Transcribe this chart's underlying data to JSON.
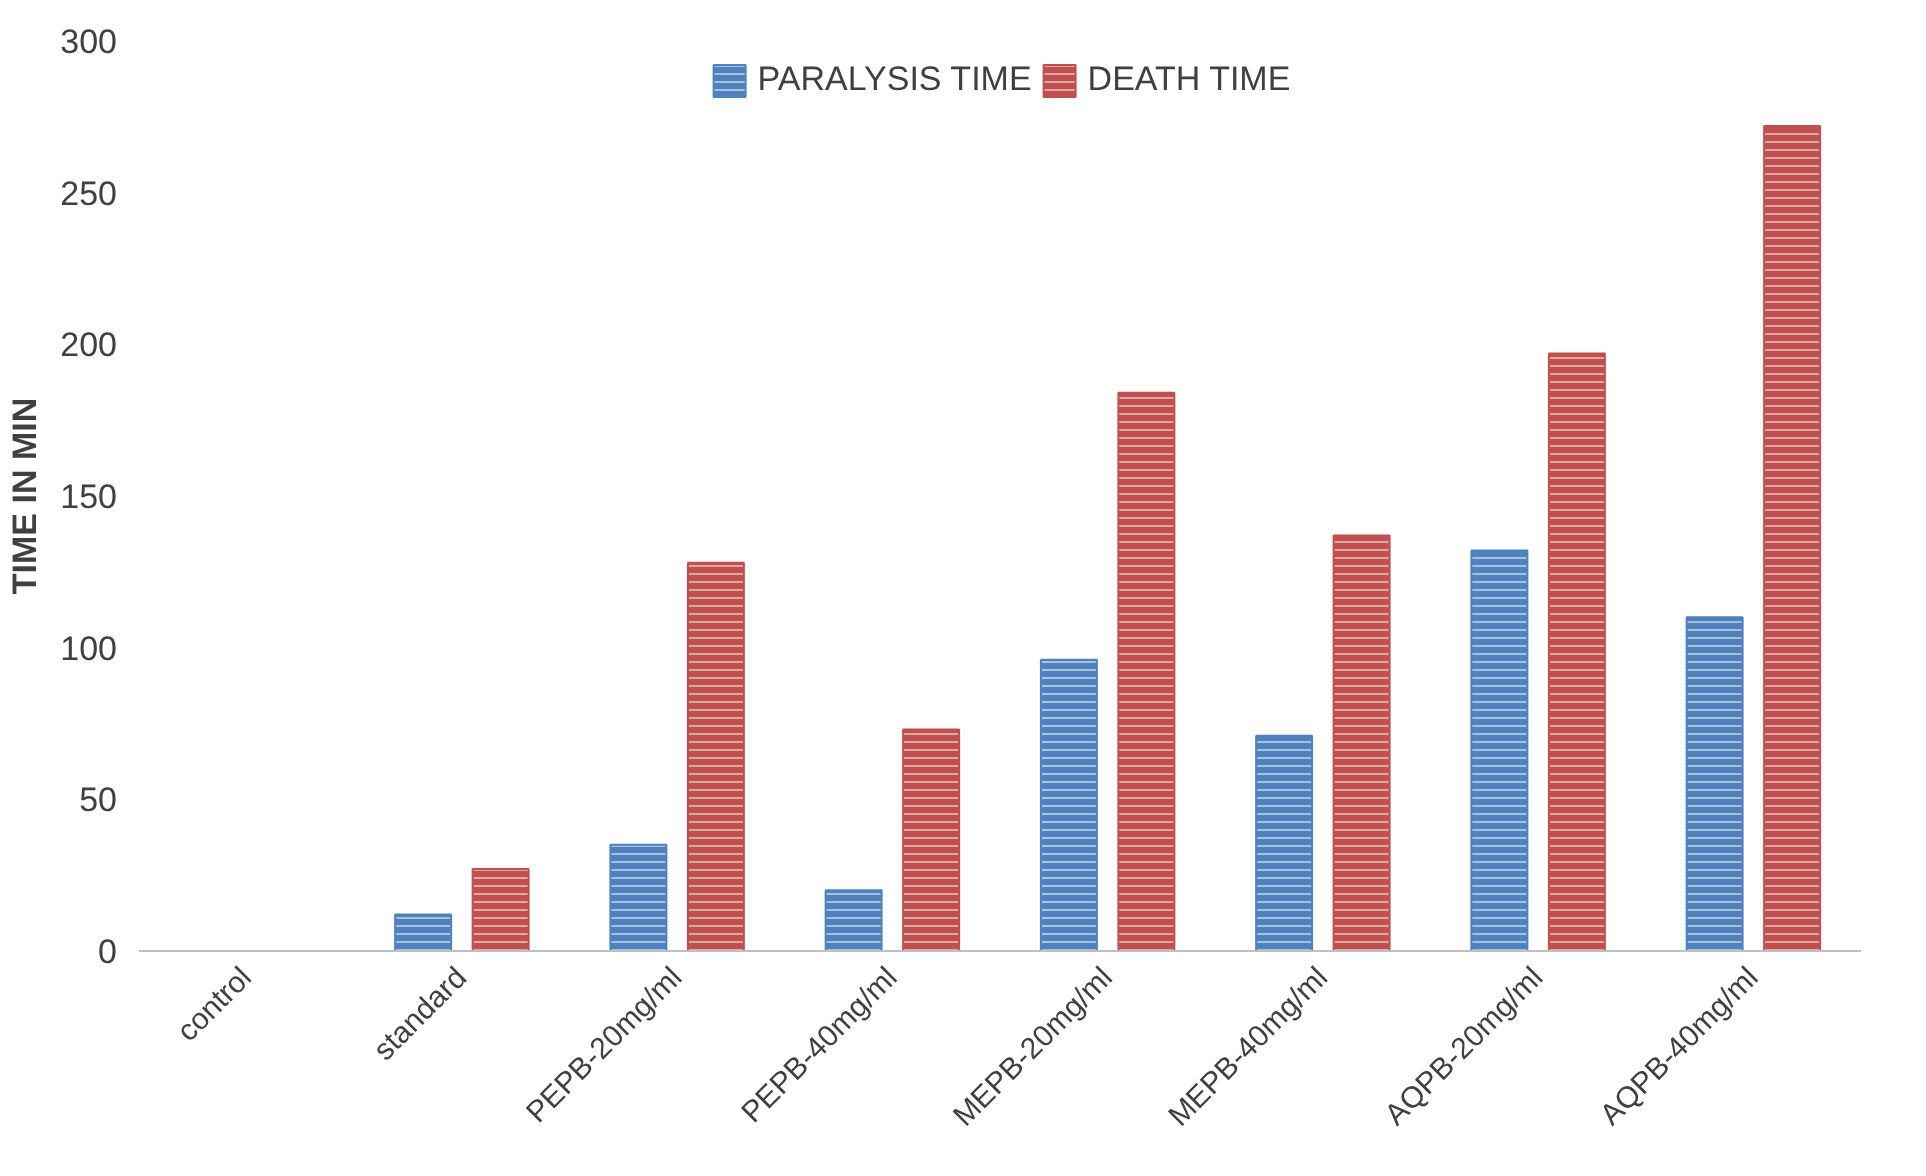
{
  "chart_data": {
    "type": "bar",
    "ylabel": "TIME IN MIN",
    "categories": [
      "control",
      "standard",
      "PEPB-20mg/ml",
      "PEPB-40mg/ml",
      "MEPB-20mg/ml",
      "MEPB-40mg/ml",
      "AQPB-20mg/ml",
      "AQPB-40mg/ml"
    ],
    "series": [
      {
        "name": "PARALYSIS TIME",
        "color": "#4f81bd",
        "values": [
          0,
          12,
          35,
          20,
          96,
          71,
          132,
          110
        ]
      },
      {
        "name": "DEATH TIME",
        "color": "#c0504d",
        "values": [
          0,
          27,
          128,
          73,
          184,
          137,
          197,
          272
        ]
      }
    ],
    "ylim": [
      0,
      300
    ],
    "yticks": [
      0,
      50,
      100,
      150,
      200,
      250,
      300
    ],
    "grid": false,
    "legend": "top"
  }
}
